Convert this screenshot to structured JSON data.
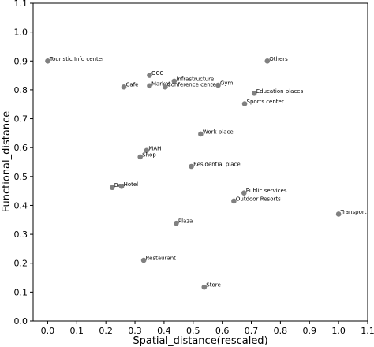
{
  "chart_data": {
    "type": "scatter",
    "xlabel": "Spatial_distance(rescaled)",
    "ylabel": "Functional_distance",
    "xlim": [
      -0.05,
      1.1
    ],
    "ylim": [
      0,
      1.1
    ],
    "xticks": [
      "0.0",
      "0.1",
      "0.2",
      "0.3",
      "0.4",
      "0.5",
      "0.6",
      "0.7",
      "0.8",
      "0.9",
      "1.0",
      "1.1"
    ],
    "yticks": [
      "0.0",
      "0.1",
      "0.2",
      "0.3",
      "0.4",
      "0.5",
      "0.6",
      "0.7",
      "0.8",
      "0.9",
      "1.0",
      "1.1"
    ],
    "grid": false,
    "marker_color": "#808080",
    "points": [
      {
        "label": "Touristic Info center",
        "x": 0.0,
        "y": 0.9
      },
      {
        "label": "Others",
        "x": 0.755,
        "y": 0.9
      },
      {
        "label": "OCC",
        "x": 0.35,
        "y": 0.85
      },
      {
        "label": "Infrastructure",
        "x": 0.435,
        "y": 0.83
      },
      {
        "label": "Cafe",
        "x": 0.262,
        "y": 0.81
      },
      {
        "label": "Market",
        "x": 0.35,
        "y": 0.814
      },
      {
        "label": "Conference center",
        "x": 0.404,
        "y": 0.81
      },
      {
        "label": "Gym",
        "x": 0.586,
        "y": 0.816
      },
      {
        "label": "Education places",
        "x": 0.71,
        "y": 0.788
      },
      {
        "label": "Sports center",
        "x": 0.677,
        "y": 0.752
      },
      {
        "label": "Work place",
        "x": 0.526,
        "y": 0.647
      },
      {
        "label": "MAH",
        "x": 0.34,
        "y": 0.59
      },
      {
        "label": "Shop",
        "x": 0.318,
        "y": 0.568
      },
      {
        "label": "Residential place",
        "x": 0.494,
        "y": 0.535
      },
      {
        "label": "Bar",
        "x": 0.222,
        "y": 0.462
      },
      {
        "label": "Hotel",
        "x": 0.254,
        "y": 0.466
      },
      {
        "label": "Public services",
        "x": 0.675,
        "y": 0.443
      },
      {
        "label": "Outdoor Resorts",
        "x": 0.64,
        "y": 0.415
      },
      {
        "label": "Transport",
        "x": 1.0,
        "y": 0.37
      },
      {
        "label": "Plaza",
        "x": 0.442,
        "y": 0.338
      },
      {
        "label": "Restaurant",
        "x": 0.33,
        "y": 0.21
      },
      {
        "label": "Store",
        "x": 0.538,
        "y": 0.117
      }
    ]
  }
}
